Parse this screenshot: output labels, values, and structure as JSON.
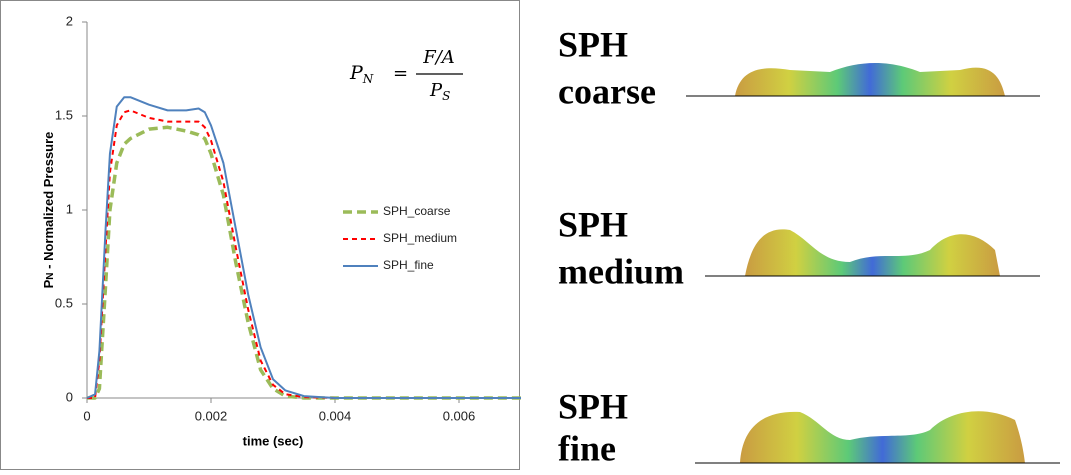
{
  "chart_data": {
    "type": "line",
    "y_label": {
      "main": "P",
      "sub": "N",
      "rest": " - Normalized Pressure"
    },
    "x_label": "time (sec)",
    "formula": {
      "lhs": "P",
      "lhs_sub": "N",
      "eq": "=",
      "numerator": "F/A",
      "denominator": "P",
      "denominator_sub": "S"
    },
    "xlim": [
      0,
      0.007
    ],
    "xticks": [
      0,
      0.002,
      0.004,
      0.006
    ],
    "ylim": [
      0,
      2
    ],
    "yticks": [
      0,
      0.5,
      1,
      1.5,
      2
    ],
    "x": [
      0,
      0.00013,
      0.0002,
      0.0003,
      0.00037,
      0.00048,
      0.0006,
      0.0007,
      0.001,
      0.0013,
      0.0016,
      0.0018,
      0.0019,
      0.002,
      0.0022,
      0.0024,
      0.0026,
      0.0028,
      0.003,
      0.0032,
      0.0035,
      0.004,
      0.007
    ],
    "series": [
      {
        "name": "SPH_coarse",
        "color": "#9bbb59",
        "dash": "9 5",
        "width": 3.5,
        "values": [
          0,
          0,
          0.05,
          0.6,
          1.0,
          1.25,
          1.35,
          1.38,
          1.43,
          1.44,
          1.42,
          1.4,
          1.38,
          1.3,
          1.08,
          0.72,
          0.4,
          0.15,
          0.05,
          0.01,
          0,
          0,
          0
        ]
      },
      {
        "name": "SPH_medium",
        "color": "#ff0000",
        "dash": "5 4",
        "width": 2,
        "values": [
          0,
          0,
          0.2,
          0.8,
          1.2,
          1.45,
          1.52,
          1.53,
          1.49,
          1.47,
          1.47,
          1.47,
          1.44,
          1.37,
          1.15,
          0.8,
          0.47,
          0.2,
          0.07,
          0.02,
          0.005,
          0,
          0
        ]
      },
      {
        "name": "SPH_fine",
        "color": "#4f81bd",
        "dash": "",
        "width": 2,
        "values": [
          0,
          0.02,
          0.25,
          0.9,
          1.3,
          1.55,
          1.6,
          1.6,
          1.56,
          1.53,
          1.53,
          1.54,
          1.52,
          1.45,
          1.25,
          0.9,
          0.55,
          0.27,
          0.1,
          0.04,
          0.01,
          0,
          0
        ]
      }
    ]
  },
  "panels": [
    [
      "SPH",
      "coarse"
    ],
    [
      "SPH",
      "medium"
    ],
    [
      "SPH",
      "fine"
    ]
  ]
}
